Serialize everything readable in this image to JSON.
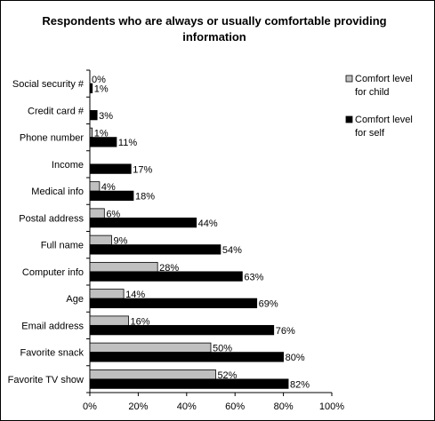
{
  "chart_data": {
    "type": "bar",
    "orientation": "horizontal",
    "title": "Respondents who are always or usually comfortable providing information",
    "categories": [
      "Social security #",
      "Credit card #",
      "Phone number",
      "Income",
      "Medical info",
      "Postal address",
      "Full name",
      "Computer info",
      "Age",
      "Email address",
      "Favorite snack",
      "Favorite TV show"
    ],
    "series": [
      {
        "name": "Comfort level for child",
        "color": "#c0c0c0",
        "values": [
          0,
          null,
          1,
          null,
          4,
          6,
          9,
          28,
          14,
          16,
          50,
          52
        ],
        "labels": [
          "0%",
          "",
          "1%",
          "",
          "4%",
          "6%",
          "9%",
          "28%",
          "14%",
          "16%",
          "50%",
          "52%"
        ]
      },
      {
        "name": "Comfort level for self",
        "color": "#000000",
        "values": [
          1,
          3,
          11,
          17,
          18,
          44,
          54,
          63,
          69,
          76,
          80,
          82
        ],
        "labels": [
          "1%",
          "3%",
          "11%",
          "17%",
          "18%",
          "44%",
          "54%",
          "63%",
          "69%",
          "76%",
          "80%",
          "82%"
        ]
      }
    ],
    "xlim": [
      0,
      100
    ],
    "xticks": [
      0,
      20,
      40,
      60,
      80,
      100
    ],
    "xticklabels": [
      "0%",
      "20%",
      "40%",
      "60%",
      "80%",
      "100%"
    ],
    "legend": {
      "placement": "right",
      "entries": [
        {
          "line1": "Comfort level",
          "line2": "for child"
        },
        {
          "line1": "Comfort level",
          "line2": "for self"
        }
      ]
    },
    "grid": false
  }
}
